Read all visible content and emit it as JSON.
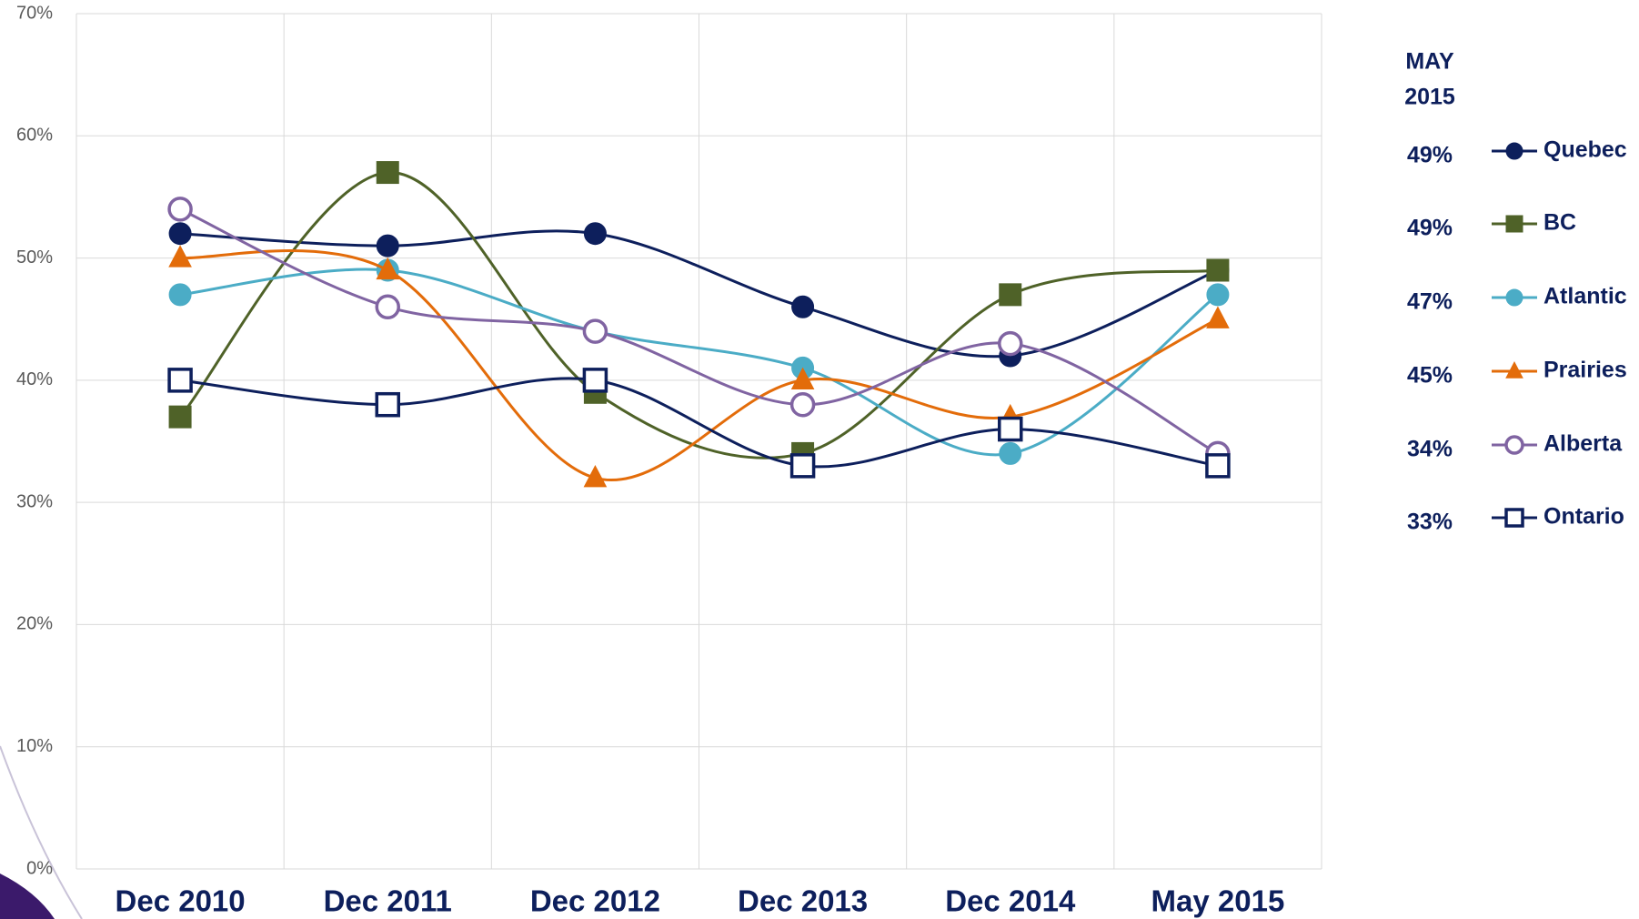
{
  "chart_data": {
    "type": "line",
    "smooth": true,
    "grid": true,
    "categories": [
      "Dec 2010",
      "Dec 2011",
      "Dec 2012",
      "Dec 2013",
      "Dec 2014",
      "May 2015"
    ],
    "ylim": [
      0,
      70
    ],
    "yticks": [
      {
        "value": 0,
        "label": "0%"
      },
      {
        "value": 10,
        "label": "10%"
      },
      {
        "value": 20,
        "label": "20%"
      },
      {
        "value": 30,
        "label": "30%"
      },
      {
        "value": 40,
        "label": "40%"
      },
      {
        "value": 50,
        "label": "50%"
      },
      {
        "value": 60,
        "label": "60%"
      },
      {
        "value": 70,
        "label": "70%"
      }
    ],
    "legend_position": "right",
    "legend_title": [
      "MAY",
      "2015"
    ],
    "series": [
      {
        "name": "Quebec",
        "color": "#0d1f5c",
        "marker": "circle",
        "filled": true,
        "values": [
          52,
          51,
          52,
          46,
          42,
          49
        ],
        "value_labels": [
          null,
          null,
          null,
          null,
          null,
          "49%"
        ]
      },
      {
        "name": "BC",
        "color": "#4f6228",
        "marker": "square",
        "filled": true,
        "values": [
          37,
          57,
          39,
          34,
          47,
          49
        ],
        "value_labels": [
          null,
          null,
          null,
          null,
          null,
          "49%"
        ]
      },
      {
        "name": "Atlantic",
        "color": "#4bacc6",
        "marker": "circle",
        "filled": true,
        "values": [
          47,
          49,
          44,
          41,
          34,
          47
        ],
        "value_labels": [
          null,
          null,
          null,
          null,
          null,
          "47%"
        ]
      },
      {
        "name": "Prairies",
        "color": "#e36c0a",
        "marker": "triangle",
        "filled": true,
        "values": [
          50,
          49,
          32,
          40,
          37,
          45
        ],
        "value_labels": [
          null,
          null,
          null,
          null,
          null,
          "45%"
        ]
      },
      {
        "name": "Alberta",
        "color": "#8064a2",
        "marker": "circle",
        "filled": false,
        "values": [
          54,
          46,
          44,
          38,
          43,
          34
        ],
        "value_labels": [
          null,
          null,
          null,
          null,
          null,
          "34%"
        ]
      },
      {
        "name": "Ontario",
        "color": "#0d1f5c",
        "marker": "square",
        "filled": false,
        "values": [
          40,
          38,
          40,
          33,
          36,
          33
        ],
        "value_labels": [
          null,
          null,
          null,
          null,
          null,
          "33%"
        ]
      }
    ]
  }
}
